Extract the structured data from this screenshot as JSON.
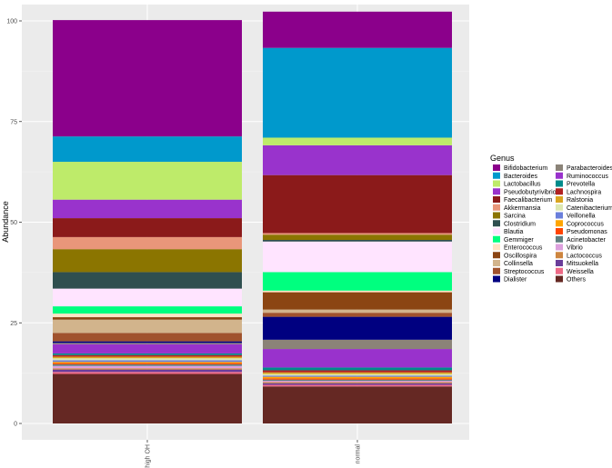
{
  "chart_data": {
    "type": "bar",
    "stacked": true,
    "ylabel": "Abundance",
    "xlabel": "",
    "ylim": [
      0,
      100
    ],
    "yticks": [
      0,
      25,
      50,
      75,
      100
    ],
    "grid": true,
    "legend_position": "right",
    "legend_title": "Genus",
    "categories": [
      "high OH",
      "normal"
    ],
    "series": [
      {
        "name": "Bifidobacterium",
        "color": "#8B008B",
        "values": [
          28.9,
          9.0
        ]
      },
      {
        "name": "Bacteroides",
        "color": "#0099CC",
        "values": [
          6.3,
          22.3
        ]
      },
      {
        "name": "Lactobacillus",
        "color": "#BEEB6A",
        "values": [
          9.4,
          1.9
        ]
      },
      {
        "name": "Pseudobutyrivibrio",
        "color": "#9933CC",
        "values": [
          4.6,
          7.4
        ]
      },
      {
        "name": "Faecalibacterium",
        "color": "#8B1A1A",
        "values": [
          4.7,
          14.4
        ]
      },
      {
        "name": "Akkermansia",
        "color": "#E9967A",
        "values": [
          3.0,
          0.4
        ]
      },
      {
        "name": "Sarcina",
        "color": "#8B7500",
        "values": [
          5.7,
          1.3
        ]
      },
      {
        "name": "Clostridium",
        "color": "#2F4F4F",
        "values": [
          4.1,
          0.4
        ]
      },
      {
        "name": "Blautia",
        "color": "#FFE4FF",
        "values": [
          4.4,
          7.6
        ]
      },
      {
        "name": "Gemmiger",
        "color": "#00FF7F",
        "values": [
          1.8,
          4.6
        ]
      },
      {
        "name": "Enterococcus",
        "color": "#FFE4C4",
        "values": [
          0.9,
          0.4
        ]
      },
      {
        "name": "Oscillospira",
        "color": "#8B4513",
        "values": [
          0.6,
          4.3
        ]
      },
      {
        "name": "Collinsella",
        "color": "#D2B48C",
        "values": [
          3.3,
          0.8
        ]
      },
      {
        "name": "Streptococcus",
        "color": "#A0522D",
        "values": [
          2.1,
          1.0
        ]
      },
      {
        "name": "Dialister",
        "color": "#000080",
        "values": [
          0.4,
          5.7
        ]
      },
      {
        "name": "Parabacteroides",
        "color": "#8B8378",
        "values": [
          0.3,
          2.3
        ]
      },
      {
        "name": "Ruminococcus",
        "color": "#9932CC",
        "values": [
          2.3,
          4.6
        ]
      },
      {
        "name": "Prevotella",
        "color": "#008B8B",
        "values": [
          0.4,
          0.7
        ]
      },
      {
        "name": "Lachnospira",
        "color": "#B22222",
        "values": [
          0.4,
          0.5
        ]
      },
      {
        "name": "Ralstonia",
        "color": "#DAA520",
        "values": [
          0.4,
          0.4
        ]
      },
      {
        "name": "Catenibacterium",
        "color": "#DDE8B0",
        "values": [
          0.5,
          0.4
        ]
      },
      {
        "name": "Veillonella",
        "color": "#6A7FDB",
        "values": [
          0.4,
          0.3
        ]
      },
      {
        "name": "Coprococcus",
        "color": "#FFA500",
        "values": [
          0.3,
          0.4
        ]
      },
      {
        "name": "Pseudomonas",
        "color": "#FF4500",
        "values": [
          0.3,
          0.3
        ]
      },
      {
        "name": "Acinetobacter",
        "color": "#5F7F7F",
        "values": [
          0.4,
          0.3
        ]
      },
      {
        "name": "Vibrio",
        "color": "#DDA0DD",
        "values": [
          0.6,
          0.3
        ]
      },
      {
        "name": "Lactococcus",
        "color": "#CD853F",
        "values": [
          0.3,
          0.3
        ]
      },
      {
        "name": "Mitsuokella",
        "color": "#6A3D9A",
        "values": [
          0.6,
          0.4
        ]
      },
      {
        "name": "Weissella",
        "color": "#EE6A87",
        "values": [
          0.5,
          0.4
        ]
      },
      {
        "name": "Others",
        "color": "#652823",
        "values": [
          12.3,
          9.2
        ]
      }
    ]
  }
}
